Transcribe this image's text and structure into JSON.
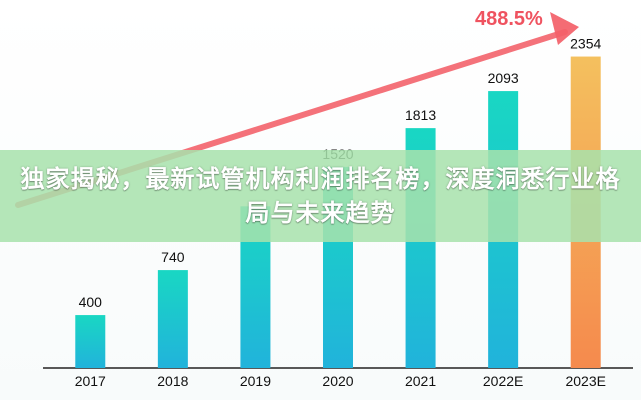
{
  "chart_data": {
    "type": "bar",
    "categories": [
      "2017",
      "2018",
      "2019",
      "2020",
      "2021",
      "2022E",
      "2023E"
    ],
    "values": [
      400,
      740,
      1222,
      1520,
      1813,
      2093,
      2354
    ],
    "value_labels": [
      "400",
      "740",
      "",
      "1520",
      "1813",
      "2093",
      "2354"
    ],
    "growth_annotation": "488.5%",
    "ylim": [
      0,
      2600
    ],
    "grid": false,
    "colors": {
      "bar_top": "#19d7c3",
      "bar_bottom": "#21b3db",
      "highlight_top": "#f4c05e",
      "highlight_bottom": "#f58a4d",
      "arrow": "#f35f68",
      "growth_text": "#ef5360",
      "axis": "#222222"
    }
  },
  "overlay": {
    "headline": "独家揭秘，最新试管机构利润排名榜，深度洞悉行业格局与未来趋势"
  }
}
